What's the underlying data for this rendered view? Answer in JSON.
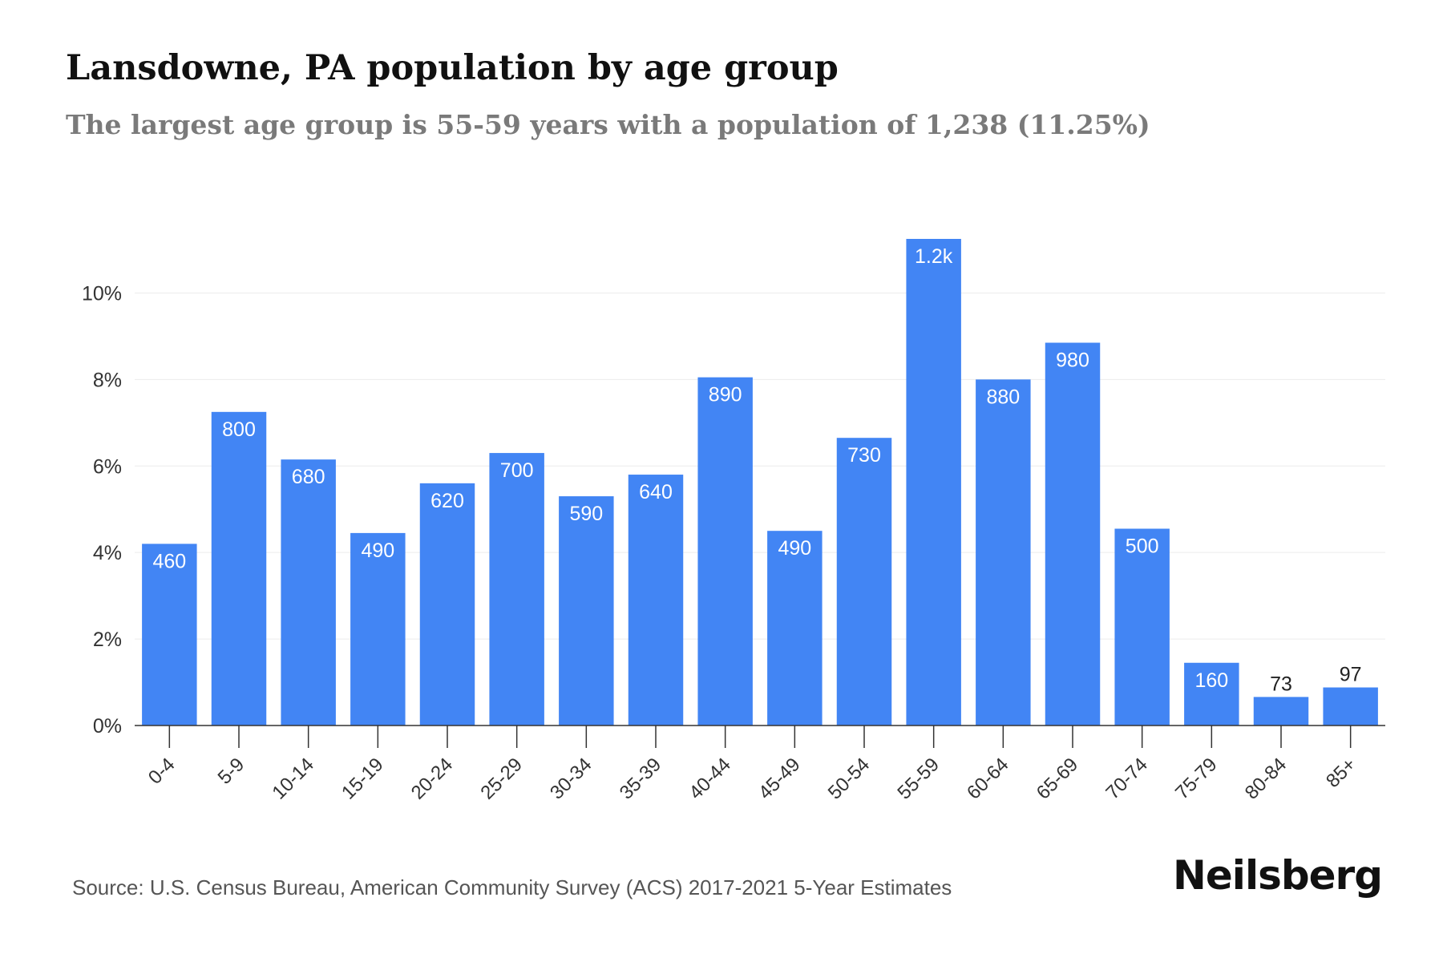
{
  "title": "Lansdowne, PA population by age group",
  "subtitle": "The largest age group is 55-59 years with a population of 1,238 (11.25%)",
  "source": "Source: U.S. Census Bureau, American Community Survey (ACS) 2017-2021 5-Year Estimates",
  "brand": "Neilsberg",
  "colors": {
    "bar": "#4285f4",
    "grid": "#ececec",
    "axis": "#333333",
    "tick_text": "#333333"
  },
  "chart_data": {
    "type": "bar",
    "categories": [
      "0-4",
      "5-9",
      "10-14",
      "15-19",
      "20-24",
      "25-29",
      "30-34",
      "35-39",
      "40-44",
      "45-49",
      "50-54",
      "55-59",
      "60-64",
      "65-69",
      "70-74",
      "75-79",
      "80-84",
      "85+"
    ],
    "values": [
      4.2,
      7.25,
      6.15,
      4.45,
      5.6,
      6.3,
      5.3,
      5.8,
      8.05,
      4.5,
      6.65,
      11.25,
      8.0,
      8.85,
      4.55,
      1.45,
      0.66,
      0.88
    ],
    "data_labels": [
      "460",
      "800",
      "680",
      "490",
      "620",
      "700",
      "590",
      "640",
      "890",
      "490",
      "730",
      "1.2k",
      "880",
      "980",
      "500",
      "160",
      "73",
      "97"
    ],
    "yticks": [
      0,
      2,
      4,
      6,
      8,
      10
    ],
    "ytick_labels": [
      "0%",
      "2%",
      "4%",
      "6%",
      "8%",
      "10%"
    ],
    "ylim": [
      0,
      11.25
    ],
    "grid": true,
    "legend": "none"
  }
}
